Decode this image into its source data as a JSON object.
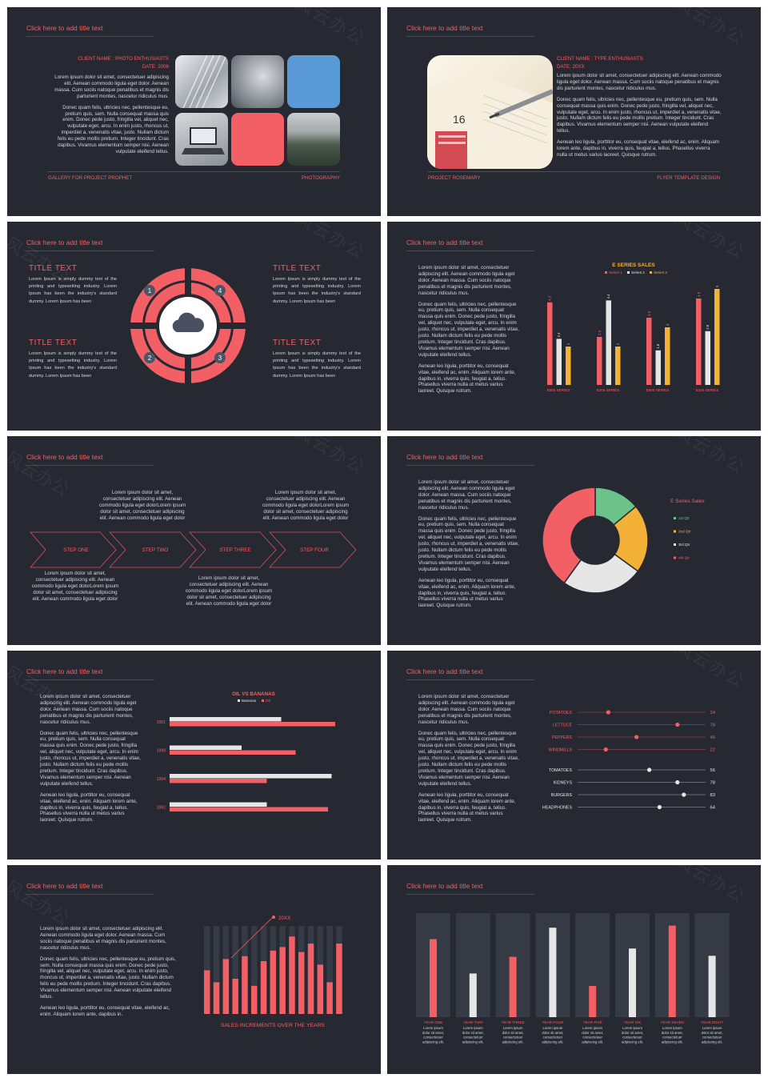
{
  "common": {
    "title_placeholder": "Click here to add title text",
    "watermark": "风云办公"
  },
  "s1": {
    "client": "CLIENT NAME : PHOTO ENTHUSIASTS",
    "date": "DATE: 2006",
    "para1": "Lorem ipsum dolor sit amet, consectetuer adipiscing elit. Aenean commodo ligula eget dolor. Aenean massa. Cum sociis natoque penatibus et magnis dis parturient montes, nascetur ridiculus mus.",
    "para2": "Donec quam felis, ultricies nec, pellentesque eu, pretium quis, sem. Nulla consequat massa quis enim. Donec pede justo, fringilla vel, aliquet nec, vulputate eget, arcu. In enim justo, rhoncus ut, imperdiet a, venenatis vitae, justo. Nullam dictum felis eu pede mollis pretium. Integer tincidunt. Cras dapibus. Vivamus elementum semper nisi. Aenean vulputate eleifend tellus.",
    "footer_left": "GALLERY FOR PROJECT PROPHET",
    "footer_right": "PHOTOGRAPHY",
    "colors": {
      "blue": "#5a9ad6",
      "coral": "#f26065"
    }
  },
  "s2": {
    "client": "CLIENT NAME : TYPE ENTHUSIASTS",
    "date": "DATE: 20XX",
    "para1": "Lorem ipsum dolor sit amet, consectetuer adipiscing elit. Aenean commodo ligula eget dolor. Aenean massa. Cum sociis natoque penatibus et magnis dis parturient montes, nascetur ridiculus mus.",
    "para2": "Donec quam felis, ultricies nec, pellentesque eu, pretium quis, sem. Nulla consequat massa quis enim. Donec pede justo, fringilla vel, aliquet nec, vulputate eget, arcu. In enim justo, rhoncus ut, imperdiet a, venenatis vitae, justo. Nullam dictum felis eu pede mollis pretium. Integer tincidunt. Cras dapibus. Vivamus elementum semper nisi. Aenean vulputate eleifend tellus.",
    "para3": "Aenean leo ligula, porttitor eu, consequat vitae, eleifend ac, enim. Aliquam lorem ante, dapibus in, viverra quis, feugiat a, tellus. Phasellus viverra nulla ut metus varius laoreet. Quisque rutrum.",
    "footer_left": "PROJECT ROSEMARY",
    "footer_right": "FLYER TEMPLATE DESIGN",
    "photo_number": "16"
  },
  "s3": {
    "block_title": "TITLE TEXT",
    "block_text": "Lorem Ipsum is simply dummy text of the printing and typesetting industry. Lorem Ipsum has been the industry's standard dummy. Lorem Ipsum has been",
    "numbers": [
      "1",
      "2",
      "3",
      "4"
    ]
  },
  "s4": {
    "para1": "Lorem ipsum dolor sit amet, consectetuer adipiscing elit. Aenean commodo ligula eget dolor. Aenean massa. Cum sociis natoque penatibus et magnis dis parturient montes, nascetur ridiculus mus.",
    "para2": "Donec quam felis, ultricies nec, pellentesque eu, pretium quis, sem. Nulla consequat massa quis enim. Donec pede justo, fringilla vel, aliquet nec, vulputate eget, arcu. In enim justo, rhoncus ut, imperdiet a, venenatis vitae, justo. Nullam dictum felis eu pede mollis pretium. Integer tincidunt. Cras dapibus. Vivamus elementum semper nisi. Aenean vulputate eleifend tellus.",
    "para3": "Aenean leo ligula, porttitor eu, consequat vitae, eleifend ac, enim. Aliquam lorem ante, dapibus in, viverra quis, feugiat a, tellus. Phasellus viverra nulla ut metus varius laoreet. Quisque rutrum."
  },
  "s5": {
    "top1": "Lorem ipsum dolor sit amet, consectetuer adipiscing elit. Aenean commodo ligula eget dolorLorem ipsum dolor sit amet, consectetuer adipiscing elit. Aenean commodo ligula eget dolor",
    "top2": "Lorem ipsum dolor sit amet, consectetuer adipiscing elit. Aenean commodo ligula eget dolorLorem ipsum dolor sit amet, consectetuer adipiscing elit. Aenean commodo ligula eget dolor",
    "bottom1": "Lorem ipsum dolor sit amet, consectetuer adipiscing elit. Aenean commodo ligula eget dolorLorem ipsum dolor sit amet, consectetuer adipiscing elit. Aenean commodo ligula eget dolor",
    "bottom2": "Lorem ipsum dolor sit amet, consectetuer adipiscing elit. Aenean commodo ligula eget dolorLorem ipsum dolor sit amet, consectetuer adipiscing elit. Aenean commodo ligula eget dolor",
    "steps": [
      "STEP ONE",
      "STEP TWO",
      "STEP THREE",
      "STEP FOUR"
    ]
  },
  "s6": {
    "para1": "Lorem ipsum dolor sit amet, consectetuer adipiscing elit. Aenean commodo ligula eget dolor. Aenean massa. Cum sociis natoque penatibus et magnis dis parturient montes, nascetur ridiculus mus.",
    "para2": "Donec quam felis, ultricies nec, pellentesque eu, pretium quis, sem. Nulla consequat massa quis enim. Donec pede justo, fringilla vel, aliquet nec, vulputate eget, arcu. In enim justo, rhoncus ut, imperdiet a, venenatis vitae, justo. Nullam dictum felis eu pede mollis pretium. Integer tincidunt. Cras dapibus. Vivamus elementum semper nisi. Aenean vulputate eleifend tellus.",
    "para3": "Aenean leo ligula, porttitor eu, consequat vitae, eleifend ac, enim. Aliquam lorem ante, dapibus in, viverra quis, feugiat a, tellus. Phasellus viverra nulla ut metus varius laoreet. Quisque rutrum."
  },
  "s7": {
    "para1": "Lorem ipsum dolor sit amet, consectetuer adipiscing elit. Aenean commodo ligula eget dolor. Aenean massa. Cum sociis natoque penatibus et magnis dis parturient montes, nascetur ridiculus mus.",
    "para2": "Donec quam felis, ultricies nec, pellentesque eu, pretium quis, sem. Nulla consequat massa quis enim. Donec pede justo, fringilla vel, aliquet nec, vulputate eget, arcu. In enim justo, rhoncus ut, imperdiet a, venenatis vitae, justo. Nullam dictum felis eu pede mollis pretium. Integer tincidunt. Cras dapibus. Vivamus elementum semper nisi. Aenean vulputate eleifend tellus.",
    "para3": "Aenean leo ligula, porttitor eu, consequat vitae, eleifend ac, enim. Aliquam lorem ante, dapibus in, viverra quis, feugiat a, tellus. Phasellus viverra nulla ut metus varius laoreet. Quisque rutrum."
  },
  "s8": {
    "para1": "Lorem ipsum dolor sit amet, consectetuer adipiscing elit. Aenean commodo ligula eget dolor. Aenean massa. Cum sociis natoque penatibus et magnis dis parturient montes, nascetur ridiculus mus.",
    "para2": "Donec quam felis, ultricies nec, pellentesque eu, pretium quis, sem. Nulla consequat massa quis enim. Donec pede justo, fringilla vel, aliquet nec, vulputate eget, arcu. In enim justo, rhoncus ut, imperdiet a, venenatis vitae, justo. Nullam dictum felis eu pede mollis pretium. Integer tincidunt. Cras dapibus. Vivamus elementum semper nisi. Aenean vulputate eleifend tellus.",
    "para3": "Aenean leo ligula, porttitor eu, consequat vitae, eleifend ac, enim. Aliquam lorem ante, dapibus in, viverra quis, feugiat a, tellus. Phasellus viverra nulla ut metus varius laoreet. Quisque rutrum."
  },
  "s9": {
    "para1": "Lorem ipsum dolor sit amet, consectetuer adipiscing elit. Aenean commodo ligula eget dolor. Aenean massa. Cum sociis natoque penatibus et magnis dis parturient montes, nascetur ridiculus mus.",
    "para2": "Donec quam felis, ultricies nec, pellentesque eu, pretium quis, sem. Nulla consequat massa quis enim. Donec pede justo, fringilla vel, aliquet nec, vulputate eget, arcu. In enim justo, rhoncus ut, imperdiet a, venenatis vitae, justo. Nullam dictum felis eu pede mollis pretium. Integer tincidunt. Cras dapibus. Vivamus elementum semper nisi. Aenean vulputate eleifend tellus.",
    "para3": "Aenean leo ligula, porttitor eu, consequat vitae, eleifend ac, enim. Aliquam lorem ante, dapibus in."
  },
  "s10": {
    "desc": "Lorem ipsum dolor sit amet, consectetuer adipiscing elit."
  },
  "chart_data": [
    {
      "type": "bar",
      "title": "E SERIES SALES",
      "categories": [
        "E500 SERIES",
        "E200 SERIES",
        "E600 SERIES",
        "E100 SERIES"
      ],
      "series": [
        {
          "name": "Series 1",
          "values": [
            4.3,
            2.5,
            3.5,
            4.5
          ],
          "color": "#f26065"
        },
        {
          "name": "Series 2",
          "values": [
            2.4,
            4.4,
            1.8,
            2.8
          ],
          "color": "#e6e6e6"
        },
        {
          "name": "Series 3",
          "values": [
            2,
            2,
            3,
            5
          ],
          "color": "#f3b137"
        }
      ],
      "ylim": [
        0,
        5
      ],
      "legend": "top"
    },
    {
      "type": "pie",
      "title": "E Series Sales",
      "categories": [
        "1st Qtr",
        "2nd Qtr",
        "3rd Qtr",
        "4th Qtr"
      ],
      "values": [
        14,
        21,
        25,
        40
      ],
      "colors": [
        "#6cc38a",
        "#f3b137",
        "#e6e6e6",
        "#f26065"
      ],
      "legend": "right"
    },
    {
      "type": "bar",
      "title": "OIL VS BANANAS",
      "categories": [
        "2001",
        "1998",
        "1994",
        "1992"
      ],
      "series": [
        {
          "name": "Bananas",
          "values": [
            3.1,
            2.0,
            4.5,
            2.7
          ],
          "color": "#e6e6e6"
        },
        {
          "name": "Oil",
          "values": [
            4.6,
            3.5,
            2.7,
            4.4
          ],
          "color": "#f26065"
        }
      ],
      "xlim": [
        0,
        5
      ],
      "legend": "top"
    },
    {
      "type": "bar",
      "title": "",
      "categories": [
        "POTATOES",
        "LETTUCE",
        "PEPPERS",
        "WINDMILLS",
        "TOMATOES",
        "KIDNEYS",
        "BURGERS",
        "HEADPHONES"
      ],
      "values": [
        24,
        78,
        46,
        22,
        56,
        78,
        83,
        64
      ],
      "colors": [
        "#f26065",
        "#f26065",
        "#f26065",
        "#f26065",
        "#e6e6e6",
        "#e6e6e6",
        "#e6e6e6",
        "#e6e6e6"
      ],
      "xlim": [
        0,
        100
      ]
    },
    {
      "type": "bar",
      "title": "SALES INCREMENTS OVER THE YEARS",
      "annotation": "20XX",
      "values": [
        62,
        45,
        78,
        50,
        82,
        40,
        75,
        90,
        95,
        110,
        88,
        100,
        70,
        45,
        100
      ],
      "max": 125
    },
    {
      "type": "bar",
      "title": "",
      "categories": [
        "YEAR ONE",
        "YEAR TWO",
        "YEAR THREE",
        "YEAR FOUR",
        "YEAR FIVE",
        "YEAR SIX",
        "YEAR SEVEN",
        "YEAR EIGHT"
      ],
      "values": [
        75,
        42,
        58,
        86,
        30,
        66,
        88,
        59
      ],
      "colors": [
        "#f26065",
        "#e6e6e6",
        "#f26065",
        "#e6e6e6",
        "#f26065",
        "#e6e6e6",
        "#f26065",
        "#e6e6e6"
      ],
      "ylim": [
        0,
        100
      ]
    }
  ]
}
